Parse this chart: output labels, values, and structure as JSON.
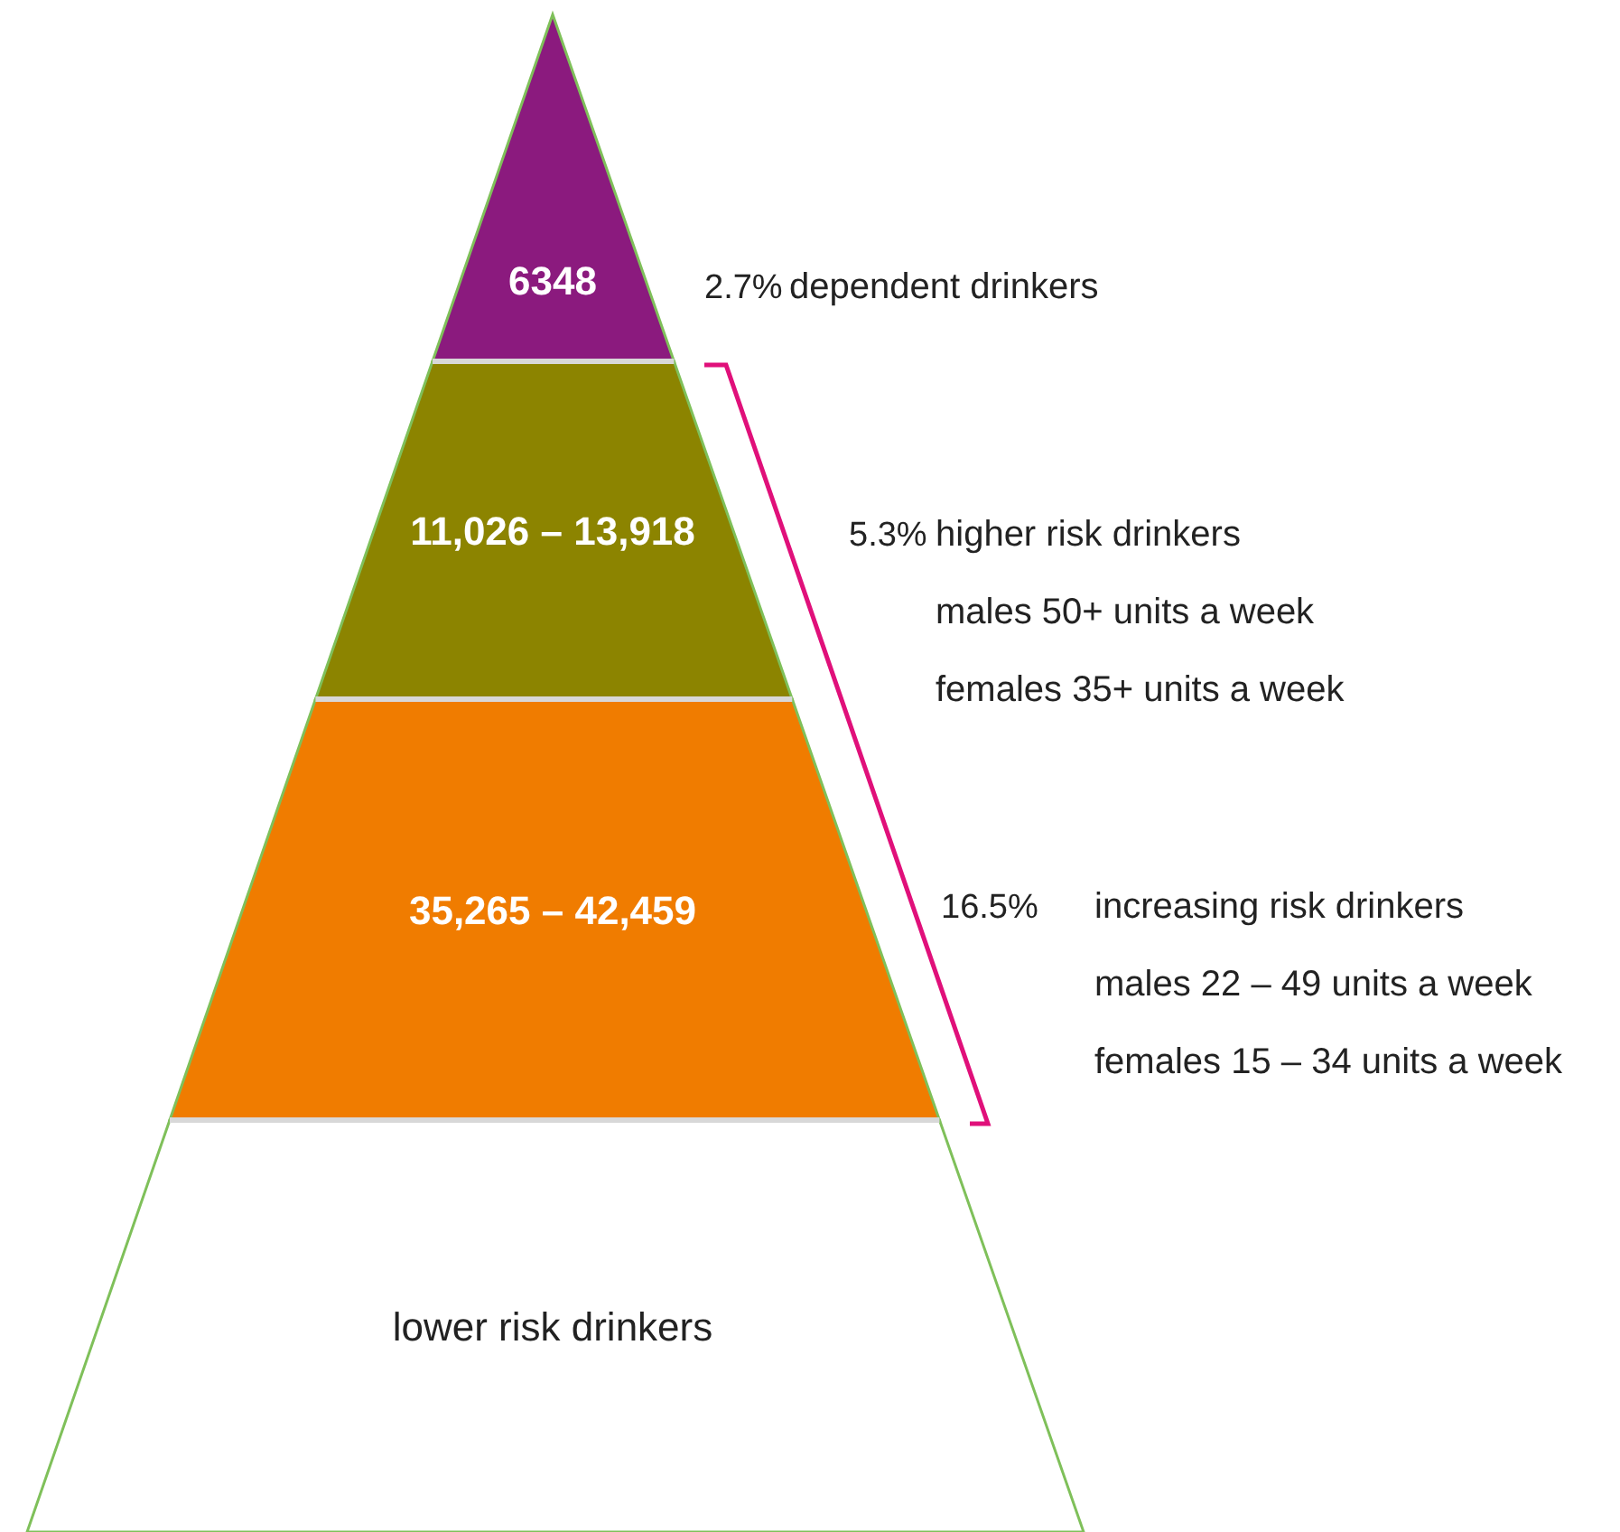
{
  "chart_data": {
    "type": "other",
    "categories": [
      "6348",
      "11,026 – 13,918",
      "35,265 – 42,459",
      "lower risk drinkers"
    ],
    "values": [
      2.7,
      5.3,
      16.5,
      null
    ],
    "value_labels": [
      "2.7%",
      "5.3%",
      "16.5%",
      null
    ],
    "colors": [
      "#8b1a7e",
      "#8c8400",
      "#f07c00",
      "#ffffff"
    ],
    "annotations": [
      "dependent drinkers",
      "higher risk drinkers",
      "males 50+ units a week",
      "females 35+ units a week",
      "increasing risk drinkers",
      "males 22 – 49 units a week",
      "females 15 – 34 units a week"
    ]
  }
}
